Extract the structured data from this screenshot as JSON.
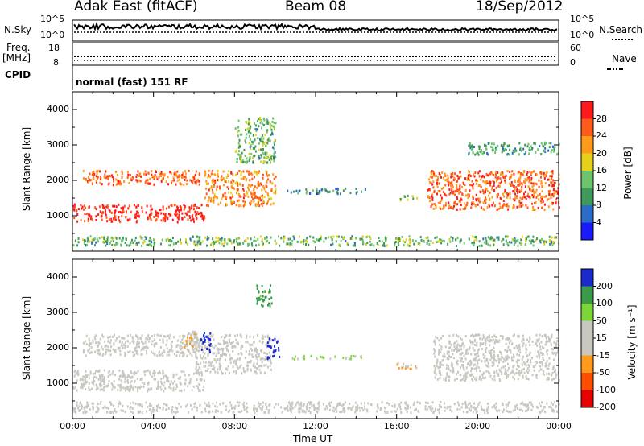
{
  "header": {
    "station": "Adak East (fitACF)",
    "beam": "Beam 08",
    "date": "18/Sep/2012"
  },
  "status_panel": {
    "nsky_label": "N.Sky",
    "nsky_ticks": [
      "10^5",
      "10^0"
    ],
    "nsearch_label": "N.Search",
    "nsearch_ticks": [
      "10^5",
      "10^0"
    ],
    "freq_label": "Freq.",
    "freq_unit": "[MHz]",
    "freq_ticks": [
      "18",
      "8"
    ],
    "nave_label": "Nave",
    "nave_ticks": [
      "60",
      "0"
    ],
    "cpid_label": "CPID",
    "cpid_value": "normal (fast) 151 RF"
  },
  "chart_data": [
    {
      "type": "heatmap",
      "name": "power",
      "xlabel": "",
      "ylabel": "Slant Range [km]",
      "x": [
        "00:00",
        "04:00",
        "08:00",
        "12:00",
        "16:00",
        "20:00",
        "00:00"
      ],
      "yticks": [
        1000,
        2000,
        3000,
        4000
      ],
      "ylim": [
        0,
        4500
      ],
      "colorbar": {
        "label": "Power [dB]",
        "ticks": [
          "28",
          "24",
          "20",
          "16",
          "12",
          "8",
          "4"
        ],
        "range": [
          0,
          30
        ]
      },
      "echo_bands": [
        {
          "t_start": 0.0,
          "t_end": 6.5,
          "range_km": [
            850,
            1350
          ],
          "value": 28
        },
        {
          "t_start": 0.5,
          "t_end": 6.4,
          "range_km": [
            1900,
            2300
          ],
          "value": 24
        },
        {
          "t_start": 6.5,
          "t_end": 10.0,
          "range_km": [
            1300,
            2300
          ],
          "value": 22
        },
        {
          "t_start": 8.0,
          "t_end": 10.0,
          "range_km": [
            2500,
            3800
          ],
          "value": 12
        },
        {
          "t_start": 10.5,
          "t_end": 14.5,
          "range_km": [
            1650,
            1800
          ],
          "value": 8
        },
        {
          "t_start": 16.0,
          "t_end": 17.0,
          "range_km": [
            1450,
            1600
          ],
          "value": 14
        },
        {
          "t_start": 17.5,
          "t_end": 24.0,
          "range_km": [
            1200,
            2300
          ],
          "value": 24
        },
        {
          "t_start": 19.5,
          "t_end": 24.0,
          "range_km": [
            2750,
            3100
          ],
          "value": 10
        },
        {
          "t_start": 0.0,
          "t_end": 24.0,
          "range_km": [
            180,
            450
          ],
          "value": 12
        }
      ]
    },
    {
      "type": "heatmap",
      "name": "velocity",
      "xlabel": "Time UT",
      "ylabel": "Slant Range [km]",
      "x": [
        "00:00",
        "04:00",
        "08:00",
        "12:00",
        "16:00",
        "20:00",
        "00:00"
      ],
      "yticks": [
        1000,
        2000,
        3000,
        4000
      ],
      "ylim": [
        0,
        4500
      ],
      "colorbar": {
        "label": "Velocity [m s⁻¹]",
        "ticks": [
          "200",
          "100",
          "50",
          "15",
          "-15",
          "-50",
          "-100",
          "-200"
        ],
        "range": [
          -250,
          250
        ]
      },
      "echo_bands": [
        {
          "t_start": 0.0,
          "t_end": 6.5,
          "range_km": [
            800,
            1400
          ],
          "value": 0
        },
        {
          "t_start": 0.5,
          "t_end": 6.0,
          "range_km": [
            1800,
            2400
          ],
          "value": 0
        },
        {
          "t_start": 6.0,
          "t_end": 9.8,
          "range_km": [
            1300,
            2400
          ],
          "value": 0
        },
        {
          "t_start": 5.5,
          "t_end": 6.3,
          "range_km": [
            2000,
            2500
          ],
          "value": -60
        },
        {
          "t_start": 6.3,
          "t_end": 6.8,
          "range_km": [
            1900,
            2500
          ],
          "value": 220
        },
        {
          "t_start": 9.6,
          "t_end": 10.2,
          "range_km": [
            1700,
            2300
          ],
          "value": 220
        },
        {
          "t_start": 9.0,
          "t_end": 9.8,
          "range_km": [
            3200,
            3800
          ],
          "value": 150
        },
        {
          "t_start": 10.5,
          "t_end": 14.5,
          "range_km": [
            1700,
            1800
          ],
          "value": 60
        },
        {
          "t_start": 15.8,
          "t_end": 17.0,
          "range_km": [
            1400,
            1600
          ],
          "value": -60
        },
        {
          "t_start": 17.8,
          "t_end": 24.0,
          "range_km": [
            1100,
            2400
          ],
          "value": 0
        },
        {
          "t_start": 0.0,
          "t_end": 24.0,
          "range_km": [
            200,
            500
          ],
          "value": 30
        }
      ]
    }
  ]
}
